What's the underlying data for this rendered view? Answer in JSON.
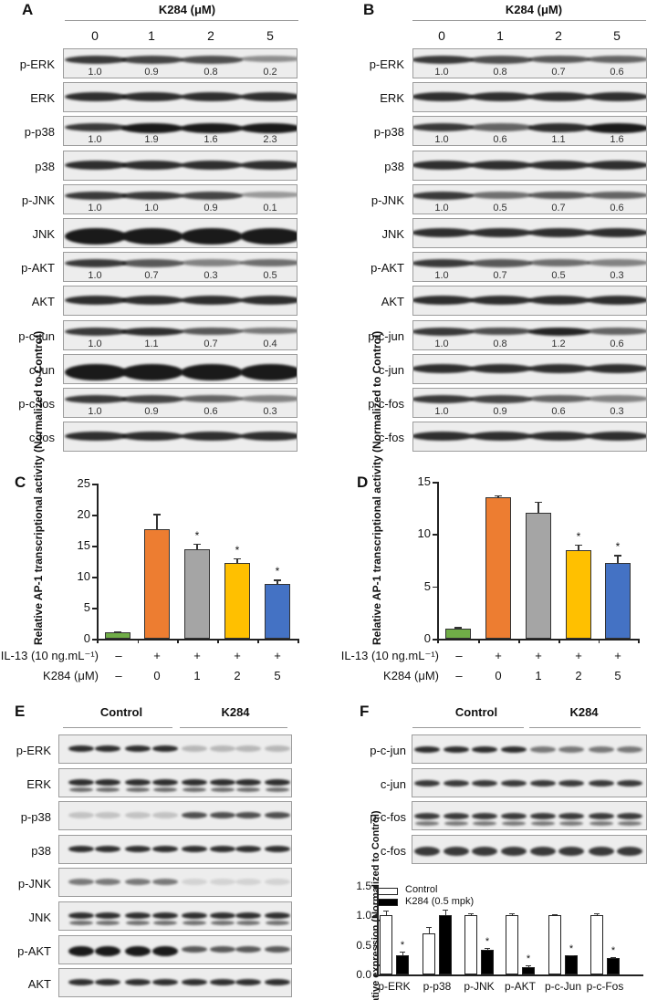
{
  "panels": {
    "A": {
      "letter": "A",
      "header": "K284 (μM)",
      "lanes": [
        "0",
        "1",
        "2",
        "5"
      ],
      "rows": [
        {
          "label": "p-ERK",
          "quant": [
            "1.0",
            "0.9",
            "0.8",
            "0.2"
          ]
        },
        {
          "label": "ERK"
        },
        {
          "label": "p-p38",
          "quant": [
            "1.0",
            "1.9",
            "1.6",
            "2.3"
          ]
        },
        {
          "label": "p38"
        },
        {
          "label": "p-JNK",
          "quant": [
            "1.0",
            "1.0",
            "0.9",
            "0.1"
          ]
        },
        {
          "label": "JNK"
        },
        {
          "label": "p-AKT",
          "quant": [
            "1.0",
            "0.7",
            "0.3",
            "0.5"
          ]
        },
        {
          "label": "AKT"
        },
        {
          "label": "p-c-jun",
          "quant": [
            "1.0",
            "1.1",
            "0.7",
            "0.4"
          ]
        },
        {
          "label": "c-jun"
        },
        {
          "label": "p-c-fos",
          "quant": [
            "1.0",
            "0.9",
            "0.6",
            "0.3"
          ]
        },
        {
          "label": "c-fos"
        }
      ]
    },
    "B": {
      "letter": "B",
      "header": "K284 (μM)",
      "lanes": [
        "0",
        "1",
        "2",
        "5"
      ],
      "rows": [
        {
          "label": "p-ERK",
          "quant": [
            "1.0",
            "0.8",
            "0.7",
            "0.6"
          ]
        },
        {
          "label": "ERK"
        },
        {
          "label": "p-p38",
          "quant": [
            "1.0",
            "0.6",
            "1.1",
            "1.6"
          ]
        },
        {
          "label": "p38"
        },
        {
          "label": "p-JNK",
          "quant": [
            "1.0",
            "0.5",
            "0.7",
            "0.6"
          ]
        },
        {
          "label": "JNK"
        },
        {
          "label": "p-AKT",
          "quant": [
            "1.0",
            "0.7",
            "0.5",
            "0.3"
          ]
        },
        {
          "label": "AKT"
        },
        {
          "label": "p-c-jun",
          "quant": [
            "1.0",
            "0.8",
            "1.2",
            "0.6"
          ]
        },
        {
          "label": "c-jun"
        },
        {
          "label": "p-c-fos",
          "quant": [
            "1.0",
            "0.9",
            "0.6",
            "0.3"
          ]
        },
        {
          "label": "c-fos"
        }
      ]
    },
    "C": {
      "letter": "C"
    },
    "D": {
      "letter": "D"
    },
    "E": {
      "letter": "E",
      "groups": [
        "Control",
        "K284"
      ],
      "rows": [
        "p-ERK",
        "ERK",
        "p-p38",
        "p38",
        "p-JNK",
        "JNK",
        "p-AKT",
        "AKT"
      ]
    },
    "F": {
      "letter": "F",
      "groups": [
        "Control",
        "K284"
      ],
      "rows": [
        "p-c-jun",
        "c-jun",
        "p-c-fos",
        "c-fos"
      ]
    }
  },
  "conditions": {
    "il13_label": "IL-13 (10 ng.mL⁻¹)",
    "k284_label": "K284 (μM)",
    "il13_values": [
      "–",
      "+",
      "+",
      "+",
      "+"
    ],
    "k284_values": [
      "–",
      "0",
      "1",
      "2",
      "5"
    ]
  },
  "chart_data": [
    {
      "panel": "C",
      "type": "bar",
      "title": "",
      "ylabel": "Relative AP-1 transcriptional activity (Normalized to Control)",
      "xlabel": "",
      "categories": [
        "IL-13 – / K284 –",
        "IL-13 + / K284 0",
        "IL-13 + / K284 1",
        "IL-13 + / K284 2",
        "IL-13 + / K284 5"
      ],
      "values": [
        1.0,
        17.7,
        14.4,
        12.2,
        8.8
      ],
      "errors": [
        0.2,
        2.4,
        0.9,
        0.8,
        0.7
      ],
      "significance": [
        "",
        "",
        "*",
        "*",
        "*"
      ],
      "colors": [
        "#70AD47",
        "#ED7D31",
        "#A5A5A5",
        "#FFC000",
        "#4472C4"
      ],
      "yticks": [
        "0",
        "5",
        "10",
        "15",
        "20",
        "25"
      ],
      "ylim": [
        0,
        25
      ],
      "grid": false
    },
    {
      "panel": "D",
      "type": "bar",
      "title": "",
      "ylabel": "Relative AP-1 transcriptional activity (Normalized to Control)",
      "xlabel": "",
      "categories": [
        "IL-13 – / K284 –",
        "IL-13 + / K284 0",
        "IL-13 + / K284 1",
        "IL-13 + / K284 2",
        "IL-13 + / K284 5"
      ],
      "values": [
        1.0,
        13.5,
        12.0,
        8.5,
        7.2
      ],
      "errors": [
        0.1,
        0.2,
        1.1,
        0.5,
        0.8
      ],
      "significance": [
        "",
        "",
        "",
        "*",
        "*"
      ],
      "colors": [
        "#70AD47",
        "#ED7D31",
        "#A5A5A5",
        "#FFC000",
        "#4472C4"
      ],
      "yticks": [
        "0",
        "5",
        "10",
        "15"
      ],
      "ylim": [
        0,
        15
      ],
      "grid": false
    },
    {
      "panel": "F",
      "type": "bar",
      "title": "",
      "ylabel": "Relative expression (Normalized to Control)",
      "xlabel": "",
      "categories": [
        "p-ERK",
        "p-p38",
        "p-JNK",
        "p-AKT",
        "p-c-Jun",
        "p-c-Fos"
      ],
      "series": [
        {
          "name": "Control",
          "color": "#FFFFFF",
          "values": [
            1.0,
            0.7,
            1.0,
            1.0,
            1.0,
            1.0
          ],
          "errors": [
            0.08,
            0.1,
            0.03,
            0.03,
            0.02,
            0.03
          ]
        },
        {
          "name": "K284 (0.5 mpk)",
          "color": "#000000",
          "values": [
            0.32,
            1.0,
            0.42,
            0.12,
            0.32,
            0.28
          ],
          "errors": [
            0.07,
            0.1,
            0.03,
            0.03,
            0.01,
            0.02
          ],
          "significance": [
            "*",
            "",
            "*",
            "*",
            "*",
            "*"
          ]
        }
      ],
      "yticks": [
        "0.0",
        "0.5",
        "1.0",
        "1.5"
      ],
      "ylim": [
        0,
        1.5
      ],
      "legend_position": "top-left",
      "grid": false
    }
  ]
}
